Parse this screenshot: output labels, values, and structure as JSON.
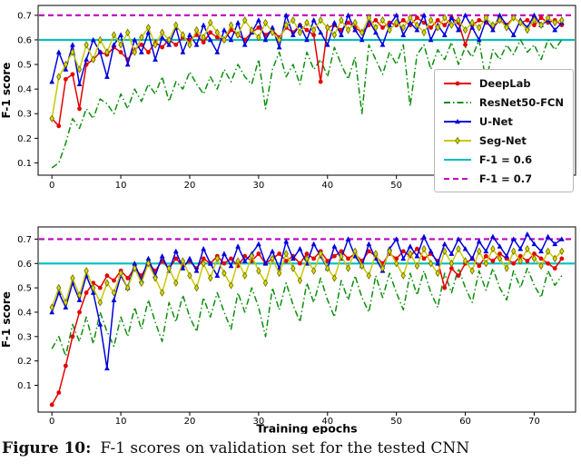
{
  "figure": {
    "caption_label": "Figure 10:",
    "caption_text": "F-1 scores on validation set for the tested CNN"
  },
  "colors": {
    "deeplab": "#e50000",
    "resnet50_fcn": "#0a8f0a",
    "unet": "#0000dd",
    "segnet": "#c9c900",
    "segnet_edge": "#6b6b00",
    "ref_06": "#00bfbf",
    "ref_07": "#bf00bf",
    "axis": "#000000"
  },
  "legend": {
    "items": [
      {
        "label": "DeepLab",
        "color": "#e50000",
        "dash": "solid",
        "marker": "circle"
      },
      {
        "label": "ResNet50-FCN",
        "color": "#0a8f0a",
        "dash": "dashdot",
        "marker": "none"
      },
      {
        "label": "U-Net",
        "color": "#0000dd",
        "dash": "solid",
        "marker": "triangle"
      },
      {
        "label": "Seg-Net",
        "color": "#c9c900",
        "dash": "solid",
        "marker": "diamond"
      },
      {
        "label": "F-1 = 0.6",
        "color": "#00bfbf",
        "dash": "solid",
        "marker": "none"
      },
      {
        "label": "F-1 = 0.7",
        "color": "#bf00bf",
        "dash": "dashed",
        "marker": "none"
      }
    ]
  },
  "chart_data": [
    {
      "type": "line",
      "title": "",
      "xlabel": "",
      "ylabel": "F-1 score",
      "xlim": [
        -2,
        76
      ],
      "ylim": [
        0.05,
        0.74
      ],
      "xticks": [
        0,
        10,
        20,
        30,
        40,
        50,
        60,
        70
      ],
      "yticks": [
        0.1,
        0.2,
        0.3,
        0.4,
        0.5,
        0.6,
        0.7
      ],
      "x_start": 0,
      "x_step": 1,
      "grid": false,
      "ref_lines": [
        {
          "label": "F-1 = 0.6",
          "value": 0.6,
          "color": "#00bfbf",
          "dash": "solid"
        },
        {
          "label": "F-1 = 0.7",
          "value": 0.7,
          "color": "#bf00bf",
          "dash": "dashed"
        }
      ],
      "series": [
        {
          "name": "ResNet50-FCN",
          "color": "#0a8f0a",
          "dash": "dashdot",
          "marker": "none",
          "values": [
            0.08,
            0.1,
            0.18,
            0.28,
            0.24,
            0.32,
            0.28,
            0.36,
            0.34,
            0.3,
            0.38,
            0.32,
            0.4,
            0.35,
            0.42,
            0.38,
            0.45,
            0.35,
            0.43,
            0.4,
            0.47,
            0.42,
            0.38,
            0.45,
            0.4,
            0.48,
            0.43,
            0.5,
            0.45,
            0.42,
            0.52,
            0.32,
            0.48,
            0.55,
            0.45,
            0.5,
            0.42,
            0.55,
            0.48,
            0.52,
            0.45,
            0.57,
            0.5,
            0.44,
            0.53,
            0.3,
            0.58,
            0.52,
            0.46,
            0.55,
            0.5,
            0.58,
            0.33,
            0.54,
            0.58,
            0.48,
            0.56,
            0.52,
            0.59,
            0.5,
            0.57,
            0.53,
            0.6,
            0.43,
            0.56,
            0.52,
            0.58,
            0.54,
            0.6,
            0.55,
            0.58,
            0.52,
            0.6,
            0.56,
            0.6
          ]
        },
        {
          "name": "DeepLab",
          "color": "#e50000",
          "dash": "solid",
          "marker": "circle",
          "values": [
            0.28,
            0.25,
            0.44,
            0.46,
            0.32,
            0.5,
            0.52,
            0.55,
            0.54,
            0.57,
            0.55,
            0.52,
            0.56,
            0.58,
            0.55,
            0.59,
            0.57,
            0.6,
            0.58,
            0.61,
            0.6,
            0.62,
            0.59,
            0.63,
            0.61,
            0.6,
            0.64,
            0.62,
            0.6,
            0.63,
            0.65,
            0.62,
            0.64,
            0.61,
            0.65,
            0.63,
            0.66,
            0.64,
            0.62,
            0.43,
            0.65,
            0.66,
            0.64,
            0.67,
            0.65,
            0.63,
            0.66,
            0.68,
            0.65,
            0.67,
            0.66,
            0.68,
            0.66,
            0.69,
            0.67,
            0.65,
            0.68,
            0.66,
            0.69,
            0.67,
            0.58,
            0.66,
            0.68,
            0.67,
            0.65,
            0.68,
            0.66,
            0.69,
            0.67,
            0.68,
            0.66,
            0.69,
            0.67,
            0.68,
            0.66
          ]
        },
        {
          "name": "U-Net",
          "color": "#0000dd",
          "dash": "solid",
          "marker": "triangle",
          "values": [
            0.43,
            0.55,
            0.48,
            0.58,
            0.42,
            0.52,
            0.6,
            0.55,
            0.45,
            0.58,
            0.62,
            0.5,
            0.6,
            0.55,
            0.63,
            0.52,
            0.61,
            0.58,
            0.65,
            0.55,
            0.62,
            0.58,
            0.66,
            0.6,
            0.55,
            0.64,
            0.6,
            0.67,
            0.58,
            0.63,
            0.68,
            0.6,
            0.65,
            0.57,
            0.7,
            0.62,
            0.66,
            0.6,
            0.68,
            0.63,
            0.58,
            0.67,
            0.62,
            0.7,
            0.64,
            0.6,
            0.68,
            0.63,
            0.58,
            0.66,
            0.7,
            0.62,
            0.67,
            0.64,
            0.7,
            0.6,
            0.66,
            0.62,
            0.69,
            0.64,
            0.7,
            0.65,
            0.6,
            0.68,
            0.64,
            0.7,
            0.66,
            0.62,
            0.68,
            0.65,
            0.7,
            0.66,
            0.68,
            0.64,
            0.67
          ]
        },
        {
          "name": "Seg-Net",
          "color": "#c9c900",
          "dash": "solid",
          "marker": "diamond",
          "values": [
            0.28,
            0.45,
            0.5,
            0.55,
            0.48,
            0.58,
            0.52,
            0.6,
            0.55,
            0.62,
            0.58,
            0.63,
            0.55,
            0.61,
            0.65,
            0.58,
            0.63,
            0.6,
            0.66,
            0.62,
            0.58,
            0.64,
            0.61,
            0.67,
            0.63,
            0.6,
            0.66,
            0.62,
            0.68,
            0.64,
            0.61,
            0.67,
            0.63,
            0.6,
            0.66,
            0.68,
            0.63,
            0.67,
            0.64,
            0.68,
            0.65,
            0.62,
            0.68,
            0.64,
            0.67,
            0.63,
            0.69,
            0.65,
            0.68,
            0.64,
            0.67,
            0.65,
            0.69,
            0.66,
            0.63,
            0.68,
            0.65,
            0.69,
            0.66,
            0.68,
            0.64,
            0.67,
            0.65,
            0.69,
            0.66,
            0.68,
            0.65,
            0.69,
            0.67,
            0.64,
            0.68,
            0.66,
            0.69,
            0.67,
            0.68
          ]
        }
      ]
    },
    {
      "type": "line",
      "title": "",
      "xlabel": "Training epochs",
      "ylabel": "F-1 score",
      "xlim": [
        -2,
        76
      ],
      "ylim": [
        -0.01,
        0.75
      ],
      "xticks": [
        0,
        10,
        20,
        30,
        40,
        50,
        60,
        70
      ],
      "yticks": [
        0.1,
        0.2,
        0.3,
        0.4,
        0.5,
        0.6,
        0.7
      ],
      "x_start": 0,
      "x_step": 1,
      "grid": false,
      "ref_lines": [
        {
          "label": "F-1 = 0.6",
          "value": 0.6,
          "color": "#00bfbf",
          "dash": "solid"
        },
        {
          "label": "F-1 = 0.7",
          "value": 0.7,
          "color": "#bf00bf",
          "dash": "dashed"
        }
      ],
      "series": [
        {
          "name": "ResNet50-FCN",
          "color": "#0a8f0a",
          "dash": "dashdot",
          "marker": "none",
          "values": [
            0.25,
            0.3,
            0.22,
            0.35,
            0.28,
            0.38,
            0.27,
            0.4,
            0.32,
            0.26,
            0.38,
            0.3,
            0.42,
            0.33,
            0.45,
            0.36,
            0.28,
            0.44,
            0.36,
            0.47,
            0.38,
            0.32,
            0.46,
            0.38,
            0.48,
            0.4,
            0.33,
            0.48,
            0.4,
            0.5,
            0.42,
            0.3,
            0.5,
            0.41,
            0.52,
            0.43,
            0.36,
            0.52,
            0.44,
            0.54,
            0.45,
            0.38,
            0.53,
            0.45,
            0.55,
            0.46,
            0.4,
            0.55,
            0.46,
            0.56,
            0.48,
            0.41,
            0.56,
            0.47,
            0.57,
            0.48,
            0.42,
            0.56,
            0.48,
            0.58,
            0.5,
            0.44,
            0.57,
            0.49,
            0.58,
            0.5,
            0.45,
            0.57,
            0.5,
            0.58,
            0.51,
            0.46,
            0.57,
            0.51,
            0.55
          ]
        },
        {
          "name": "DeepLab",
          "color": "#e50000",
          "dash": "solid",
          "marker": "circle",
          "values": [
            0.02,
            0.07,
            0.18,
            0.3,
            0.4,
            0.48,
            0.52,
            0.5,
            0.55,
            0.53,
            0.57,
            0.54,
            0.58,
            0.55,
            0.6,
            0.57,
            0.61,
            0.58,
            0.62,
            0.59,
            0.61,
            0.58,
            0.62,
            0.6,
            0.63,
            0.6,
            0.62,
            0.59,
            0.63,
            0.61,
            0.64,
            0.6,
            0.62,
            0.64,
            0.61,
            0.63,
            0.6,
            0.64,
            0.62,
            0.65,
            0.61,
            0.63,
            0.65,
            0.62,
            0.64,
            0.61,
            0.65,
            0.63,
            0.6,
            0.64,
            0.62,
            0.65,
            0.63,
            0.66,
            0.62,
            0.64,
            0.61,
            0.5,
            0.58,
            0.55,
            0.6,
            0.62,
            0.59,
            0.63,
            0.61,
            0.64,
            0.62,
            0.6,
            0.63,
            0.61,
            0.64,
            0.62,
            0.6,
            0.58,
            0.62
          ]
        },
        {
          "name": "U-Net",
          "color": "#0000dd",
          "dash": "solid",
          "marker": "triangle",
          "values": [
            0.4,
            0.48,
            0.42,
            0.52,
            0.45,
            0.55,
            0.48,
            0.35,
            0.17,
            0.45,
            0.55,
            0.5,
            0.6,
            0.53,
            0.62,
            0.55,
            0.63,
            0.57,
            0.65,
            0.58,
            0.62,
            0.57,
            0.66,
            0.6,
            0.55,
            0.64,
            0.59,
            0.67,
            0.61,
            0.64,
            0.68,
            0.6,
            0.65,
            0.58,
            0.69,
            0.62,
            0.66,
            0.6,
            0.68,
            0.63,
            0.58,
            0.67,
            0.62,
            0.7,
            0.63,
            0.59,
            0.68,
            0.62,
            0.57,
            0.66,
            0.7,
            0.62,
            0.67,
            0.63,
            0.71,
            0.65,
            0.6,
            0.68,
            0.64,
            0.7,
            0.66,
            0.62,
            0.69,
            0.65,
            0.71,
            0.67,
            0.63,
            0.7,
            0.66,
            0.72,
            0.68,
            0.65,
            0.71,
            0.68,
            0.7
          ]
        },
        {
          "name": "Seg-Net",
          "color": "#c9c900",
          "dash": "solid",
          "marker": "diamond",
          "values": [
            0.42,
            0.5,
            0.44,
            0.54,
            0.47,
            0.57,
            0.5,
            0.44,
            0.52,
            0.48,
            0.56,
            0.5,
            0.58,
            0.52,
            0.6,
            0.54,
            0.48,
            0.58,
            0.52,
            0.61,
            0.55,
            0.5,
            0.6,
            0.54,
            0.62,
            0.56,
            0.51,
            0.61,
            0.55,
            0.63,
            0.57,
            0.52,
            0.62,
            0.56,
            0.64,
            0.58,
            0.53,
            0.62,
            0.57,
            0.64,
            0.58,
            0.54,
            0.63,
            0.58,
            0.65,
            0.59,
            0.55,
            0.64,
            0.58,
            0.65,
            0.6,
            0.55,
            0.64,
            0.59,
            0.66,
            0.6,
            0.56,
            0.65,
            0.6,
            0.66,
            0.61,
            0.57,
            0.65,
            0.6,
            0.66,
            0.62,
            0.58,
            0.65,
            0.61,
            0.66,
            0.62,
            0.59,
            0.65,
            0.62,
            0.65
          ]
        }
      ]
    }
  ]
}
